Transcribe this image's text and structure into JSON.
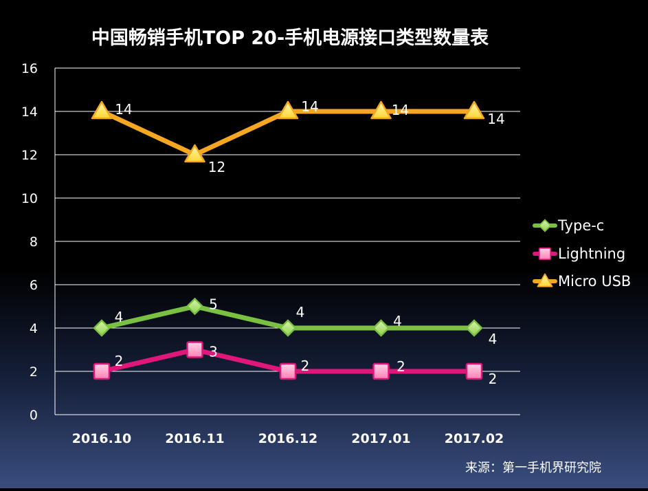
{
  "chart_data": {
    "type": "line",
    "title": "中国畅销手机TOP 20-手机电源接口类型数量表",
    "categories": [
      "2016.10",
      "2016.11",
      "2016.12",
      "2017.01",
      "2017.02"
    ],
    "ylim": [
      0,
      16
    ],
    "yticks": [
      0,
      2,
      4,
      6,
      8,
      10,
      12,
      14,
      16
    ],
    "ytick_labels": [
      "0",
      "2",
      "4",
      "6",
      "8",
      "10",
      "12",
      "14",
      "16"
    ],
    "grid": true,
    "legend_position": "right",
    "series": [
      {
        "name": "Type-c",
        "values": [
          4,
          5,
          4,
          4,
          4
        ],
        "labels": [
          "4",
          "5",
          "4",
          "4",
          "4"
        ],
        "color": "#7ac142",
        "marker": "diamond"
      },
      {
        "name": "Lightning",
        "values": [
          2,
          3,
          2,
          2,
          2
        ],
        "labels": [
          "2",
          "3",
          "2",
          "2",
          "2"
        ],
        "color": "#e0177a",
        "marker": "square"
      },
      {
        "name": "Micro USB",
        "values": [
          14,
          12,
          14,
          14,
          14
        ],
        "labels": [
          "14",
          "12",
          "14",
          "14",
          "14"
        ],
        "color": "#f5a623",
        "marker": "triangle"
      }
    ],
    "source": "来源：第一手机界研究院"
  }
}
